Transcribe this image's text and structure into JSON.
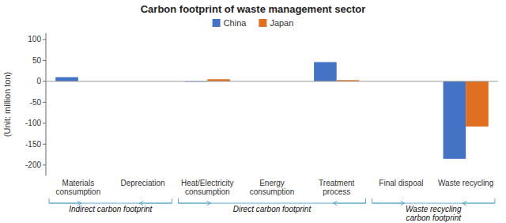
{
  "chart_data": {
    "type": "bar",
    "title": "Carbon footprint of waste management sector",
    "ylabel": "(Unit: million ton)",
    "categories": [
      "Materials\nconsumption",
      "Depreciation",
      "Heat/Electricity\nconsumption",
      "Energy\nconsumption",
      "Treatment\nprocess",
      "Final dispoal",
      "Waste recycling"
    ],
    "series": [
      {
        "name": "China",
        "color": "#4472C4",
        "values": [
          10,
          0,
          -1,
          0,
          46,
          0,
          -185
        ]
      },
      {
        "name": "Japan",
        "color": "#E07020",
        "values": [
          0,
          0,
          5,
          0,
          3,
          0,
          -108
        ]
      }
    ],
    "ylim": [
      -225,
      115
    ],
    "yticks": [
      -200,
      -150,
      -100,
      -50,
      0,
      50,
      100
    ],
    "annotations": [
      {
        "text": "Indirect carbon footprint",
        "start": 0,
        "end": 1
      },
      {
        "text": "Direct carbon footprint",
        "start": 2,
        "end": 4
      },
      {
        "text": "Waste recycling\ncarbon footprint",
        "start": 5,
        "end": 6
      }
    ],
    "legend": "top",
    "grid": false
  }
}
